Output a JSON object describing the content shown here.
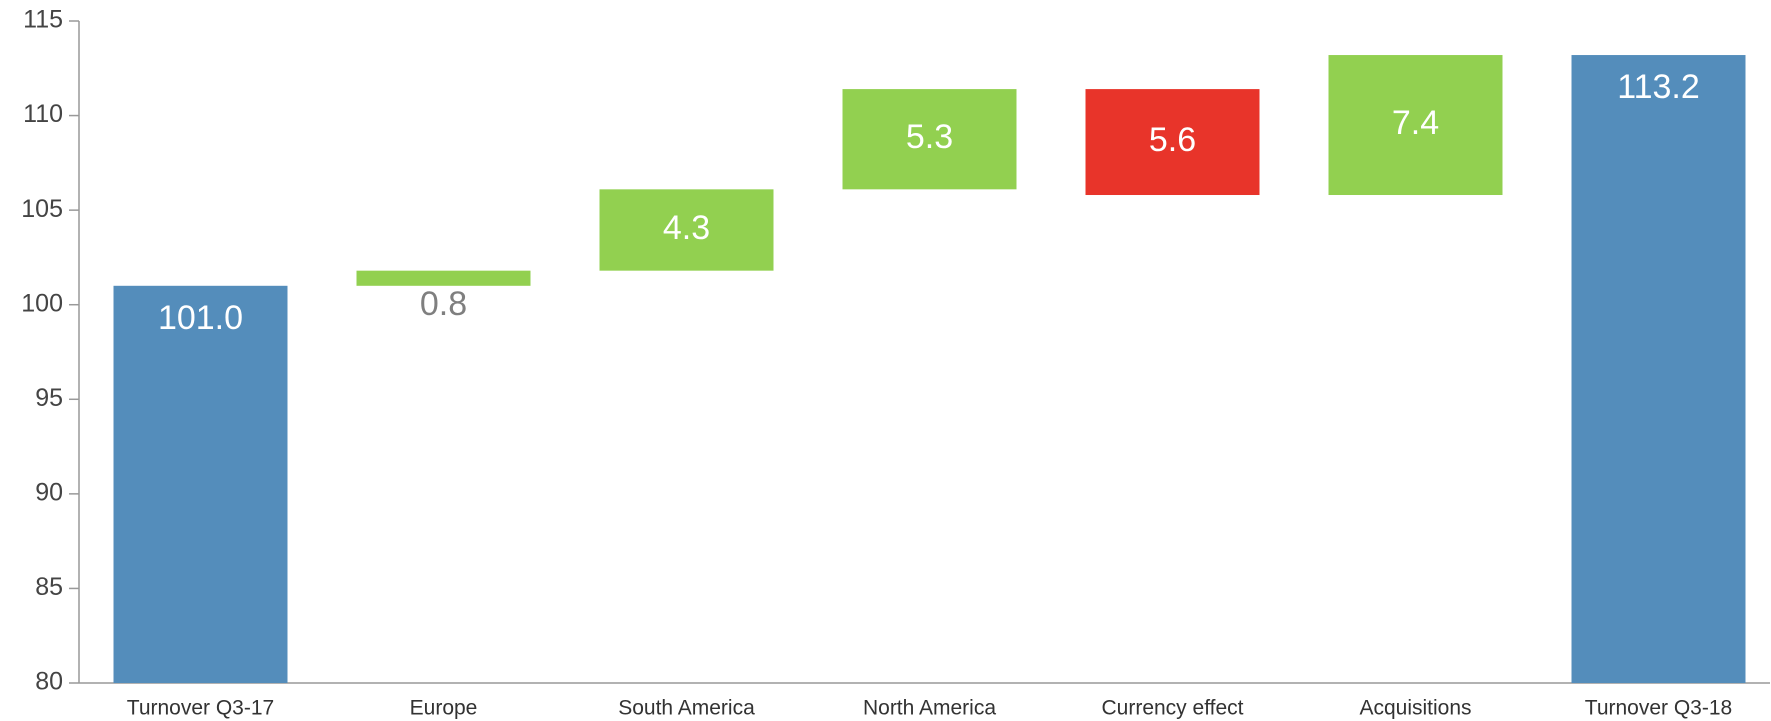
{
  "chart_data": {
    "type": "waterfall",
    "categories": [
      "Turnover Q3-17",
      "Europe",
      "South America",
      "North America",
      "Currency effect",
      "Acquisitions",
      "Turnover Q3-18"
    ],
    "values": [
      101.0,
      0.8,
      4.3,
      5.3,
      -5.6,
      7.4,
      113.2
    ],
    "value_labels": [
      "101.0",
      "0.8",
      "4.3",
      "5.3",
      "5.6",
      "7.4",
      "113.2"
    ],
    "is_total": [
      true,
      false,
      false,
      false,
      false,
      false,
      true
    ],
    "colors": [
      "#548dbb",
      "#92d050",
      "#92d050",
      "#92d050",
      "#e8342a",
      "#92d050",
      "#548dbb"
    ],
    "ylim": [
      80,
      115
    ],
    "yticks": [
      80,
      85,
      90,
      95,
      100,
      105,
      110,
      115
    ]
  }
}
